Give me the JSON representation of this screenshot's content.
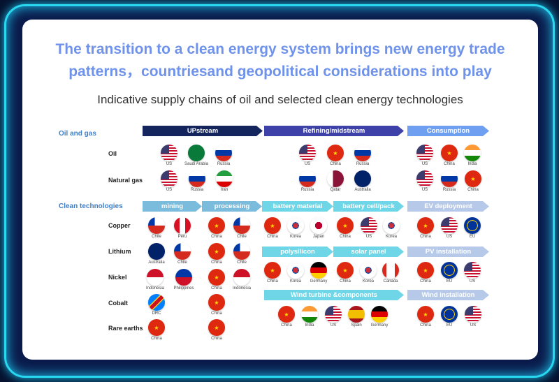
{
  "title_line1": "The transition to a clean energy system brings new energy trade",
  "title_line2": "patterns，countriesand geopolitical considerations into play",
  "subtitle": "Indicative supply chains of oil and selected clean energy technologies",
  "sections": {
    "oil_gas": "Oil and gas",
    "clean": "Clean technologies"
  },
  "stages": {
    "upstream": "UPstream",
    "refining": "Refining/midstream",
    "consumption": "Consumption",
    "mining": "mining",
    "processing": "processing",
    "battery_material": "battery material",
    "battery_cell": "battery cell/pack",
    "ev": "EV deployment",
    "polysilicon": "polysilicon",
    "solar_panel": "solar panel",
    "pv": "PV installation",
    "wind_turbine": "Wind turbine &components",
    "wind_install": "Wind installation"
  },
  "rows": {
    "oil": "Oil",
    "gas": "Natural gas",
    "copper": "Copper",
    "lithium": "Lithium",
    "nickel": "Nickel",
    "cobalt": "Cobalt",
    "rare_earths": "Rare earths"
  },
  "stage_colors": {
    "upstream": "#14245c",
    "refining": "#3d41a8",
    "consumption": "#6f9ff0",
    "mining_processing": "#7bbcdc",
    "manufacturing": "#6fd6e8",
    "deployment": "#b6c9e9"
  },
  "flag_groups": [
    {
      "id": "oil-upstream",
      "countries": [
        "US",
        "Saudi Arabia",
        "Russia"
      ]
    },
    {
      "id": "oil-refining",
      "countries": [
        "US",
        "China",
        "Russia"
      ]
    },
    {
      "id": "oil-consumption",
      "countries": [
        "US",
        "China",
        "India"
      ]
    },
    {
      "id": "gas-upstream",
      "countries": [
        "US",
        "Russia",
        "Iran"
      ]
    },
    {
      "id": "gas-refining",
      "countries": [
        "Russia",
        "Qatar",
        "Australia"
      ]
    },
    {
      "id": "gas-consumption",
      "countries": [
        "US",
        "Russia",
        "China"
      ]
    },
    {
      "id": "copper-mining",
      "countries": [
        "Chile",
        "Peru"
      ]
    },
    {
      "id": "copper-processing",
      "countries": [
        "China",
        "Chile"
      ]
    },
    {
      "id": "lithium-mining",
      "countries": [
        "Australia",
        "Chile"
      ]
    },
    {
      "id": "lithium-processing",
      "countries": [
        "China",
        "Chile"
      ]
    },
    {
      "id": "nickel-mining",
      "countries": [
        "Indonesia",
        "Philippines"
      ]
    },
    {
      "id": "nickel-processing",
      "countries": [
        "China",
        "Indonesia"
      ]
    },
    {
      "id": "cobalt-mining",
      "countries": [
        "DRC"
      ]
    },
    {
      "id": "cobalt-processing",
      "countries": [
        "China"
      ]
    },
    {
      "id": "rare-mining",
      "countries": [
        "China"
      ]
    },
    {
      "id": "rare-processing",
      "countries": [
        "China"
      ]
    },
    {
      "id": "battery-material",
      "countries": [
        "China",
        "Korea",
        "Japan"
      ]
    },
    {
      "id": "battery-cell",
      "countries": [
        "China",
        "US",
        "Korea"
      ]
    },
    {
      "id": "ev-deployment",
      "countries": [
        "China",
        "US",
        "EU"
      ]
    },
    {
      "id": "polysilicon",
      "countries": [
        "China",
        "Korea",
        "Germany"
      ]
    },
    {
      "id": "solar-panel",
      "countries": [
        "China",
        "Korea",
        "Canada"
      ]
    },
    {
      "id": "pv-installation",
      "countries": [
        "China",
        "EU",
        "US"
      ]
    },
    {
      "id": "wind-turbine",
      "countries": [
        "China",
        "India",
        "US",
        "Spain",
        "Germany"
      ]
    },
    {
      "id": "wind-installation",
      "countries": [
        "China",
        "EU",
        "US"
      ]
    }
  ]
}
